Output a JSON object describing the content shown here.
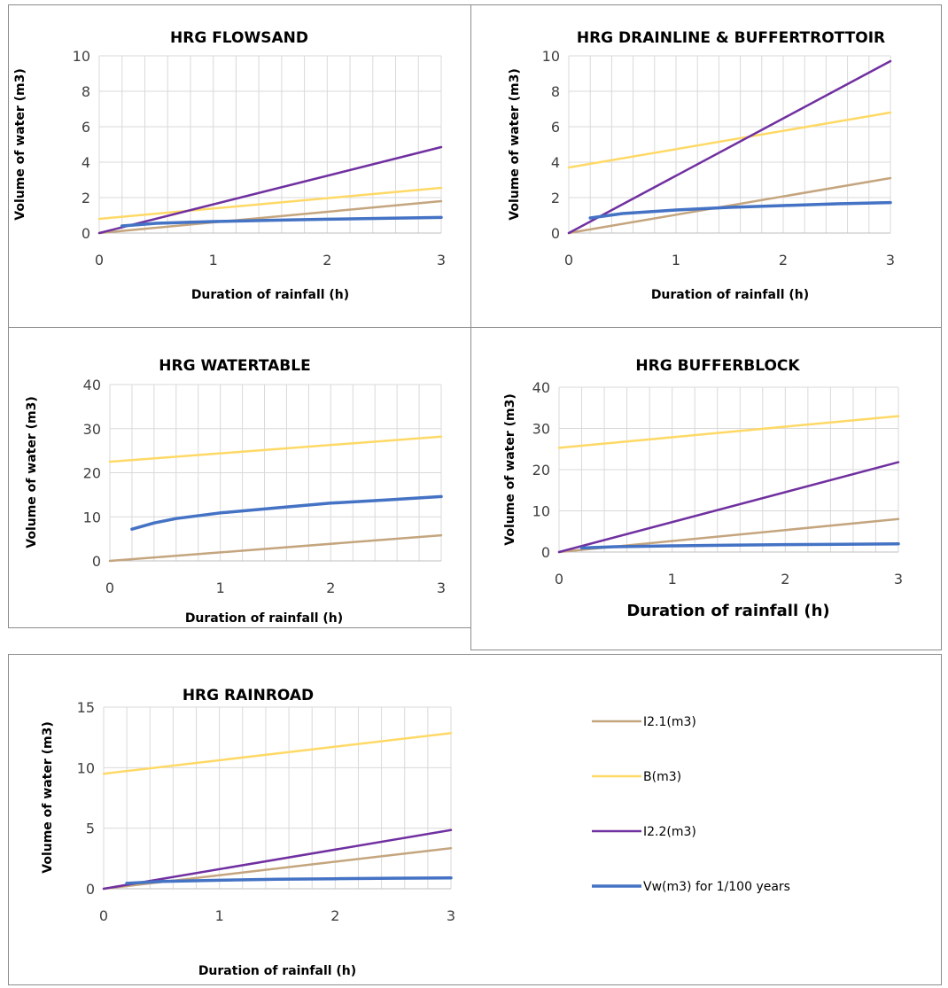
{
  "colors": {
    "I2.1(m3)": "#c4a57e",
    "B(m3)": "#ffd966",
    "I2.2(m3)": "#7030a0",
    "Vw(m3) for 1/100 years": "#4472c4"
  },
  "legend": [
    "I2.1(m3)",
    "B(m3)",
    "I2.2(m3)",
    "Vw(m3) for 1/100 years"
  ],
  "chart_data": [
    {
      "type": "line",
      "title": "HRG FLOWSAND",
      "xlabel": "Duration of rainfall (h)",
      "ylabel": "Volume of water (m3)",
      "xlim": [
        0,
        3
      ],
      "ylim": [
        0,
        10
      ],
      "xticks": [
        "0",
        "1",
        "2",
        "3"
      ],
      "yticks": [
        "0",
        "2",
        "4",
        "6",
        "8",
        "10"
      ],
      "grid": true,
      "series": [
        {
          "name": "I2.1(m3)",
          "x": [
            0,
            3
          ],
          "y": [
            0,
            1.8
          ]
        },
        {
          "name": "B(m3)",
          "x": [
            0,
            3
          ],
          "y": [
            0.8,
            2.55
          ]
        },
        {
          "name": "I2.2(m3)",
          "x": [
            0,
            3
          ],
          "y": [
            0,
            4.85
          ]
        },
        {
          "name": "Vw(m3) for 1/100 years",
          "x": [
            0.2,
            0.5,
            1,
            1.5,
            2,
            2.5,
            3
          ],
          "y": [
            0.4,
            0.55,
            0.65,
            0.72,
            0.78,
            0.83,
            0.88
          ]
        }
      ]
    },
    {
      "type": "line",
      "title": "HRG DRAINLINE & BUFFERTROTTOIR",
      "xlabel": "Duration of rainfall (h)",
      "ylabel": "Volume of water (m3)",
      "xlim": [
        0,
        3
      ],
      "ylim": [
        0,
        10
      ],
      "xticks": [
        "0",
        "1",
        "2",
        "3"
      ],
      "yticks": [
        "0",
        "2",
        "4",
        "6",
        "8",
        "10"
      ],
      "grid": true,
      "series": [
        {
          "name": "I2.1(m3)",
          "x": [
            0,
            3
          ],
          "y": [
            0,
            3.1
          ]
        },
        {
          "name": "B(m3)",
          "x": [
            0,
            3
          ],
          "y": [
            3.7,
            6.8
          ]
        },
        {
          "name": "I2.2(m3)",
          "x": [
            0,
            3
          ],
          "y": [
            0,
            9.7
          ]
        },
        {
          "name": "Vw(m3) for 1/100 years",
          "x": [
            0.2,
            0.5,
            1,
            1.5,
            2,
            2.5,
            3
          ],
          "y": [
            0.85,
            1.1,
            1.3,
            1.45,
            1.55,
            1.65,
            1.72
          ]
        }
      ]
    },
    {
      "type": "line",
      "title": "HRG WATERTABLE",
      "xlabel": "Duration of rainfall (h)",
      "ylabel": "Volume of water (m3)",
      "xlim": [
        0,
        3
      ],
      "ylim": [
        0,
        40
      ],
      "xticks": [
        "0",
        "1",
        "2",
        "3"
      ],
      "yticks": [
        "0",
        "10",
        "20",
        "30",
        "40"
      ],
      "grid": true,
      "series": [
        {
          "name": "I2.1(m3)",
          "x": [
            0,
            3
          ],
          "y": [
            0,
            5.8
          ]
        },
        {
          "name": "B(m3)",
          "x": [
            0,
            3
          ],
          "y": [
            22.5,
            28.2
          ]
        },
        {
          "name": "Vw(m3) for 1/100 years",
          "x": [
            0.2,
            0.4,
            0.6,
            1,
            1.5,
            2,
            2.5,
            3
          ],
          "y": [
            7.2,
            8.6,
            9.6,
            10.9,
            12,
            13.1,
            13.8,
            14.6
          ]
        }
      ]
    },
    {
      "type": "line",
      "title": "HRG BUFFERBLOCK",
      "xlabel": "Duration of rainfall (h)",
      "ylabel": "Volume of water (m3)",
      "xlim": [
        0,
        3
      ],
      "ylim": [
        0,
        40
      ],
      "xticks": [
        "0",
        "1",
        "2",
        "3"
      ],
      "yticks": [
        "0",
        "10",
        "20",
        "30",
        "40"
      ],
      "grid": true,
      "series": [
        {
          "name": "I2.1(m3)",
          "x": [
            0,
            3
          ],
          "y": [
            0,
            8
          ]
        },
        {
          "name": "B(m3)",
          "x": [
            0,
            3
          ],
          "y": [
            25.3,
            33
          ]
        },
        {
          "name": "I2.2(m3)",
          "x": [
            0,
            3
          ],
          "y": [
            0,
            21.8
          ]
        },
        {
          "name": "Vw(m3) for 1/100 years",
          "x": [
            0.2,
            0.5,
            1,
            1.5,
            2,
            2.5,
            3
          ],
          "y": [
            1,
            1.3,
            1.5,
            1.65,
            1.8,
            1.9,
            2
          ]
        }
      ]
    },
    {
      "type": "line",
      "title": "HRG RAINROAD",
      "xlabel": "Duration of rainfall (h)",
      "ylabel": "Volume of water (m3)",
      "xlim": [
        0,
        3
      ],
      "ylim": [
        0,
        15
      ],
      "xticks": [
        "0",
        "1",
        "2",
        "3"
      ],
      "yticks": [
        "0",
        "5",
        "10",
        "15"
      ],
      "grid": true,
      "legend_position": "right",
      "series": [
        {
          "name": "I2.1(m3)",
          "x": [
            0,
            3
          ],
          "y": [
            0,
            3.35
          ]
        },
        {
          "name": "B(m3)",
          "x": [
            0,
            3
          ],
          "y": [
            9.5,
            12.85
          ]
        },
        {
          "name": "I2.2(m3)",
          "x": [
            0,
            3
          ],
          "y": [
            0,
            4.85
          ]
        },
        {
          "name": "Vw(m3) for 1/100 years",
          "x": [
            0.2,
            0.5,
            1,
            1.5,
            2,
            2.5,
            3
          ],
          "y": [
            0.45,
            0.6,
            0.7,
            0.78,
            0.83,
            0.87,
            0.9
          ]
        }
      ]
    }
  ]
}
